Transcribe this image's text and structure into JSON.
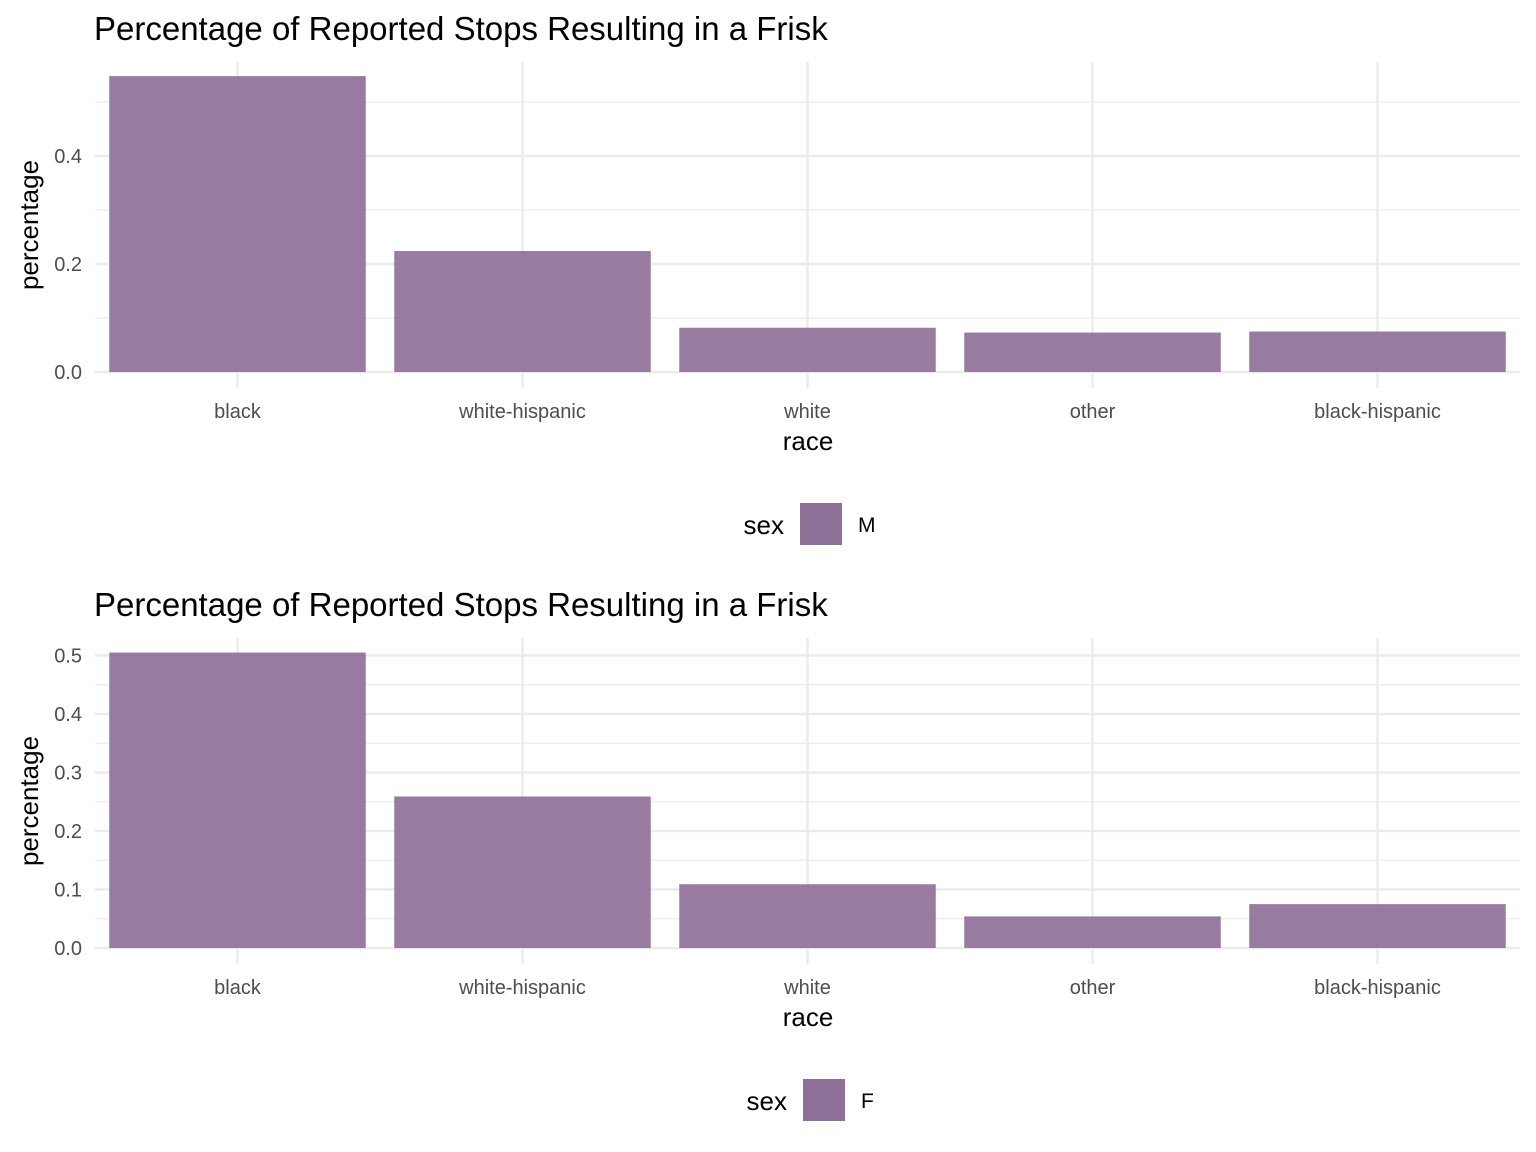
{
  "chart_data": [
    {
      "type": "bar",
      "title": "Percentage of Reported Stops Resulting in a Frisk",
      "xlabel": "race",
      "ylabel": "percentage",
      "categories": [
        "black",
        "white-hispanic",
        "white",
        "other",
        "black-hispanic"
      ],
      "series": [
        {
          "name": "M",
          "values": [
            0.548,
            0.224,
            0.082,
            0.073,
            0.075
          ]
        }
      ],
      "ylim": [
        0,
        0.575
      ],
      "yticks": [
        0.0,
        0.2,
        0.4
      ],
      "ytick_labels": [
        "0.0",
        "0.2",
        "0.4"
      ],
      "legend": {
        "title": "sex",
        "placement": "bottom"
      },
      "grid": true,
      "bar_color": "#8e7098"
    },
    {
      "type": "bar",
      "title": "Percentage of Reported Stops Resulting in a Frisk",
      "xlabel": "race",
      "ylabel": "percentage",
      "categories": [
        "black",
        "white-hispanic",
        "white",
        "other",
        "black-hispanic"
      ],
      "series": [
        {
          "name": "F",
          "values": [
            0.505,
            0.259,
            0.109,
            0.054,
            0.075
          ]
        }
      ],
      "ylim": [
        0,
        0.53
      ],
      "yticks": [
        0.0,
        0.1,
        0.2,
        0.3,
        0.4,
        0.5
      ],
      "ytick_labels": [
        "0.0",
        "0.1",
        "0.2",
        "0.3",
        "0.4",
        "0.5"
      ],
      "legend": {
        "title": "sex",
        "placement": "bottom"
      },
      "grid": true,
      "bar_color": "#8e7098"
    }
  ]
}
